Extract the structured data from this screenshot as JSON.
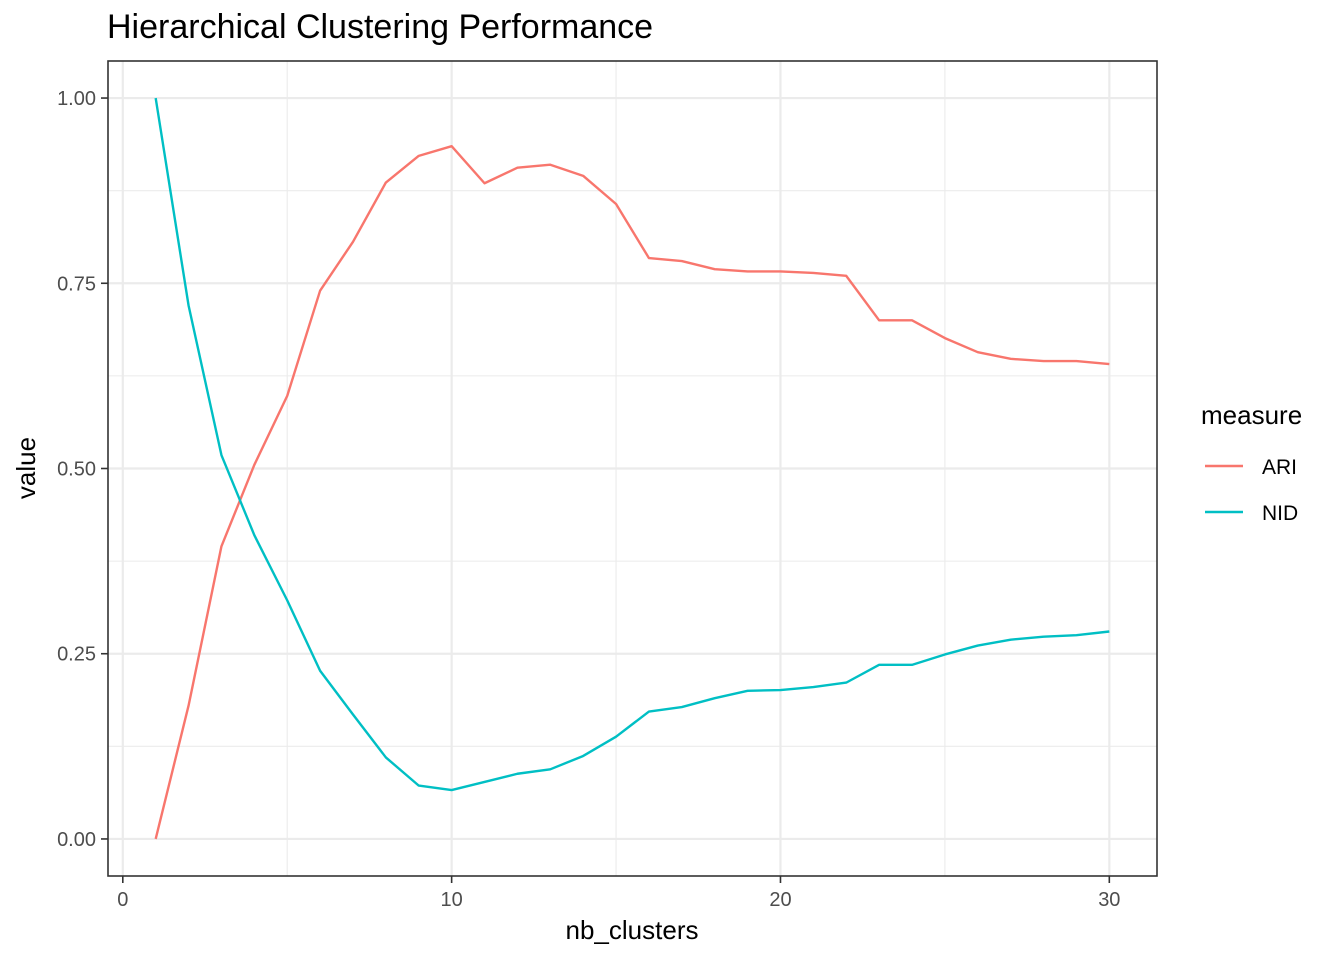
{
  "chart_data": {
    "type": "line",
    "title": "Hierarchical Clustering Performance",
    "xlabel": "nb_clusters",
    "ylabel": "value",
    "xlim": [
      -0.45,
      31.45
    ],
    "ylim": [
      -0.05,
      1.05
    ],
    "x_ticks": [
      0,
      10,
      20,
      30
    ],
    "x_tick_labels": [
      "0",
      "10",
      "20",
      "30"
    ],
    "x_minor_ticks": [
      5,
      15,
      25
    ],
    "y_ticks": [
      0,
      0.25,
      0.5,
      0.75,
      1.0
    ],
    "y_tick_labels": [
      "0.00",
      "0.25",
      "0.50",
      "0.75",
      "1.00"
    ],
    "y_minor_ticks": [
      0.125,
      0.375,
      0.625,
      0.875
    ],
    "grid": true,
    "legend": {
      "title": "measure",
      "position": "right"
    },
    "x": [
      1,
      2,
      3,
      4,
      5,
      6,
      7,
      8,
      9,
      10,
      11,
      12,
      13,
      14,
      15,
      16,
      17,
      18,
      19,
      20,
      21,
      22,
      23,
      24,
      25,
      26,
      27,
      28,
      29,
      30
    ],
    "series": [
      {
        "name": "ARI",
        "color": "#F8766D",
        "values": [
          0.0,
          0.18,
          0.395,
          0.505,
          0.598,
          0.74,
          0.806,
          0.886,
          0.922,
          0.935,
          0.885,
          0.906,
          0.91,
          0.895,
          0.857,
          0.784,
          0.78,
          0.769,
          0.766,
          0.766,
          0.764,
          0.76,
          0.7,
          0.7,
          0.676,
          0.657,
          0.648,
          0.645,
          0.645,
          0.641
        ]
      },
      {
        "name": "NID",
        "color": "#00BFC4",
        "values": [
          1.0,
          0.72,
          0.518,
          0.41,
          0.322,
          0.227,
          0.168,
          0.11,
          0.072,
          0.066,
          0.077,
          0.088,
          0.094,
          0.112,
          0.138,
          0.172,
          0.178,
          0.19,
          0.2,
          0.201,
          0.205,
          0.211,
          0.235,
          0.235,
          0.249,
          0.261,
          0.269,
          0.273,
          0.275,
          0.28
        ]
      }
    ]
  }
}
